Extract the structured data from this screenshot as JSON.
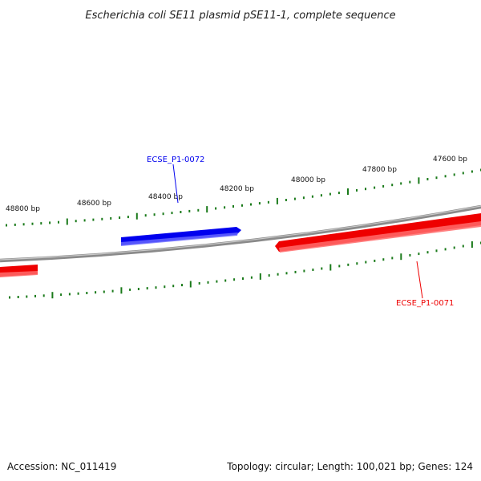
{
  "title": "Escherichia coli SE11 plasmid pSE11-1, complete sequence",
  "footer": {
    "accession": "Accession: NC_011419",
    "summary": "Topology: circular; Length: 100,021 bp; Genes: 124"
  },
  "colors": {
    "backbone": "#8a8a8a",
    "forward_gene": "#0000ee",
    "reverse_gene": "#ee0000",
    "ticks": "#1a7a1a"
  },
  "ruler_labels": [
    "48800 bp",
    "48600 bp",
    "48400 bp",
    "48200 bp",
    "48000 bp",
    "47800 bp",
    "47600 bp"
  ],
  "genes": [
    {
      "id": "ECSE_P1-0072",
      "strand": "forward",
      "color": "#0000ee"
    },
    {
      "id": "ECSE_P1-0071",
      "strand": "reverse",
      "color": "#ee0000"
    }
  ]
}
